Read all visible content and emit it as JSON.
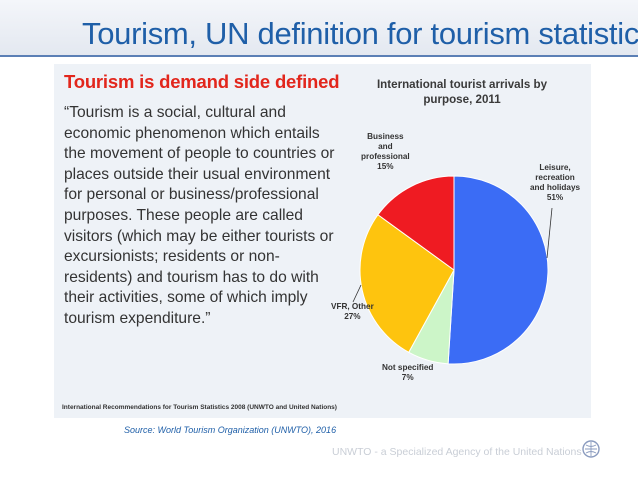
{
  "slide": {
    "title": "Tourism, UN definition for tourism statistics"
  },
  "panel": {
    "heading": "Tourism is demand side defined",
    "quote_lines": [
      "“Tourism is a social, cultural and",
      "economic phenomenon which entails",
      "the movement of people to countries or",
      "places outside their usual environment",
      "for personal or business/professional",
      "purposes. These people are called",
      "visitors (which may be either tourists or",
      "excursionists; residents or non-",
      "residents) and tourism has to do with",
      "their activities, some of which imply",
      "tourism expenditure.”"
    ],
    "footnote": "International Recommendations for Tourism Statistics 2008 (UNWTO and United Nations)"
  },
  "chart_data": {
    "type": "pie",
    "title_lines": [
      "International tourist arrivals by",
      "purpose, 2011"
    ],
    "slices": [
      {
        "label_lines": [
          "Leisure,",
          "recreation",
          "and holidays",
          "51%"
        ],
        "value": 51,
        "color": "#3b6cf5"
      },
      {
        "label_lines": [
          "Not specified",
          "7%"
        ],
        "value": 7,
        "color": "#ccf5c8"
      },
      {
        "label_lines": [
          "VFR, Other",
          "27%"
        ],
        "value": 27,
        "color": "#fec40e"
      },
      {
        "label_lines": [
          "Business",
          "and",
          "professional",
          "15%"
        ],
        "value": 15,
        "color": "#ef1b22"
      }
    ]
  },
  "source": "Source: World Tourism Organization (UNWTO), 2016",
  "footer": {
    "agency": "UNWTO - a Specialized Agency of the United Nations"
  }
}
